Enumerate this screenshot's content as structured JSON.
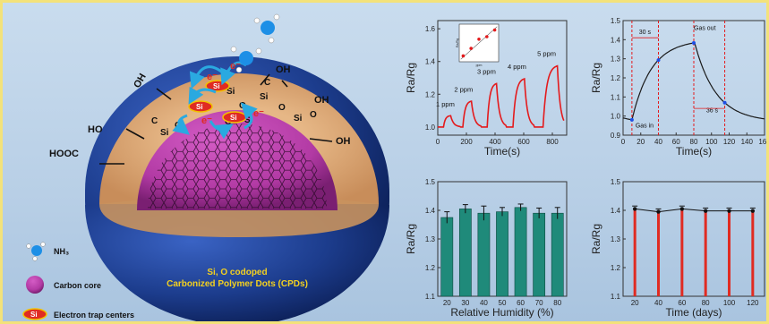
{
  "illustration": {
    "groups": [
      "OH",
      "OH",
      "HO",
      "OH",
      "HOOC",
      "OH"
    ],
    "atoms": [
      "Si",
      "O",
      "Si",
      "O",
      "C",
      "Si",
      "O",
      "O",
      "Si",
      "C",
      "O",
      "Si",
      "O"
    ],
    "electron": "e⁻",
    "dot_caption_line1": "Si, O codoped",
    "dot_caption_line2": "Carbonized Polymer Dots (CPDs)",
    "legend": [
      {
        "icon": "ammonia-molecule-icon",
        "label": "NH₃"
      },
      {
        "icon": "carbon-core-icon",
        "label": "Carbon core"
      },
      {
        "icon": "si-trap-icon",
        "badge": "Si",
        "label": "Electron trap centers"
      }
    ],
    "colors": {
      "shell": "#dca877",
      "sphere": "#1c3c8c",
      "core": "#b23aa4",
      "trap": "#e02b22",
      "arrow": "#2aa9e0",
      "nh3": "#1d8fe6"
    }
  },
  "chart_data": [
    {
      "type": "line",
      "xlabel": "Time(s)",
      "ylabel": "Ra/Rg",
      "xlim": [
        0,
        900
      ],
      "ylim": [
        0.95,
        1.65
      ],
      "xticks": [
        0,
        200,
        400,
        600,
        800
      ],
      "yticks": [
        1.0,
        1.2,
        1.4,
        1.6
      ],
      "color": "#e41a1c",
      "peaks": [
        {
          "label": "1 ppm",
          "t_in": 40,
          "t_out": 90,
          "peak": 1.07
        },
        {
          "label": "2 ppm",
          "t_in": 175,
          "t_out": 235,
          "peak": 1.16
        },
        {
          "label": "3 ppm",
          "t_in": 345,
          "t_out": 410,
          "peak": 1.27
        },
        {
          "label": "4 ppm",
          "t_in": 525,
          "t_out": 605,
          "peak": 1.3
        },
        {
          "label": "5 ppm",
          "t_in": 735,
          "t_out": 835,
          "peak": 1.38
        }
      ],
      "inset": {
        "type": "scatter",
        "xlabel": "ppm",
        "ylabel": "Ra/Rg",
        "x": [
          1,
          2,
          3,
          4,
          5
        ],
        "y": [
          1.07,
          1.16,
          1.27,
          1.3,
          1.38
        ]
      }
    },
    {
      "type": "line",
      "xlabel": "Time(s)",
      "ylabel": "Ra/Rg",
      "xlim": [
        0,
        160
      ],
      "ylim": [
        0.9,
        1.5
      ],
      "xticks": [
        0,
        20,
        40,
        60,
        80,
        100,
        120,
        140,
        160
      ],
      "yticks": [
        0.9,
        1.0,
        1.1,
        1.2,
        1.3,
        1.4,
        1.5
      ],
      "color": "#1a1a1a",
      "gas_in_t": 10,
      "gas_out_t": 80,
      "markers_t": [
        10,
        40,
        80,
        115
      ],
      "annotations": [
        "Gas in",
        "Gas out",
        "30 s",
        "36 s"
      ]
    },
    {
      "type": "bar",
      "xlabel": "Relative Humidity (%)",
      "ylabel": "Ra/Rg",
      "categories": [
        "20",
        "30",
        "40",
        "50",
        "60",
        "70",
        "80"
      ],
      "values": [
        1.375,
        1.405,
        1.39,
        1.395,
        1.41,
        1.39,
        1.39
      ],
      "errors": [
        0.02,
        0.015,
        0.025,
        0.015,
        0.012,
        0.018,
        0.02
      ],
      "ylim": [
        1.1,
        1.5
      ],
      "yticks": [
        1.1,
        1.2,
        1.3,
        1.4,
        1.5
      ],
      "color": "#1f8a7a"
    },
    {
      "type": "line",
      "xlabel": "Time (days)",
      "ylabel": "Ra/Rg",
      "x": [
        20,
        40,
        60,
        80,
        100,
        120
      ],
      "values": [
        1.405,
        1.395,
        1.405,
        1.398,
        1.398,
        1.398
      ],
      "xlim": [
        10,
        130
      ],
      "ylim": [
        1.1,
        1.5
      ],
      "xticks": [
        20,
        40,
        60,
        80,
        100,
        120
      ],
      "yticks": [
        1.1,
        1.2,
        1.3,
        1.4,
        1.5
      ],
      "color": "#e02b22"
    }
  ]
}
